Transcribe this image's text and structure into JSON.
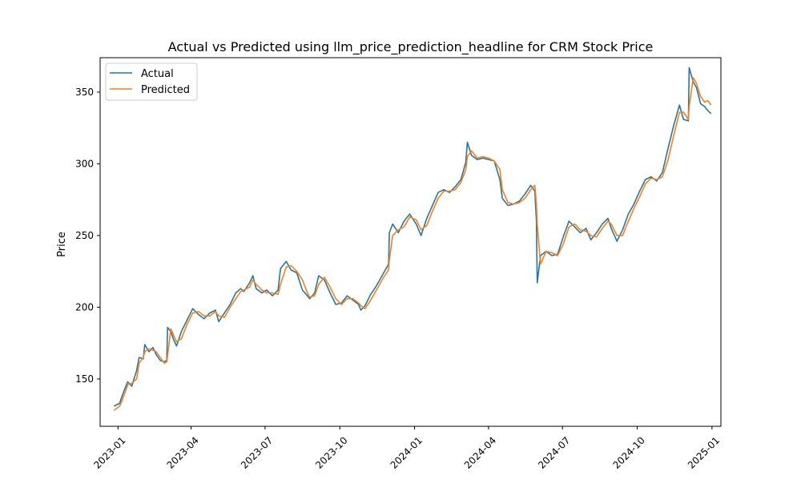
{
  "chart_data": {
    "type": "line",
    "title": "Actual vs Predicted using llm_price_prediction_headline for CRM Stock Price",
    "xlabel": "",
    "ylabel": "Price",
    "x_axis": "date",
    "xlim": [
      "2022-12-10",
      "2025-01-12"
    ],
    "ylim": [
      117,
      374
    ],
    "x_ticks": [
      "2023-01",
      "2023-04",
      "2023-07",
      "2023-10",
      "2024-01",
      "2024-04",
      "2024-07",
      "2024-10",
      "2025-01"
    ],
    "y_ticks": [
      150,
      200,
      250,
      300,
      350
    ],
    "grid": false,
    "legend": "top-left",
    "series": [
      {
        "name": "Actual",
        "color": "#1f77b4",
        "points": [
          [
            "2022-12-27",
            131
          ],
          [
            "2023-01-03",
            133
          ],
          [
            "2023-01-06",
            138
          ],
          [
            "2023-01-10",
            144
          ],
          [
            "2023-01-13",
            148
          ],
          [
            "2023-01-18",
            145
          ],
          [
            "2023-01-24",
            156
          ],
          [
            "2023-01-27",
            165
          ],
          [
            "2023-02-01",
            164
          ],
          [
            "2023-02-03",
            174
          ],
          [
            "2023-02-08",
            169
          ],
          [
            "2023-02-13",
            172
          ],
          [
            "2023-02-17",
            167
          ],
          [
            "2023-02-22",
            163
          ],
          [
            "2023-02-27",
            162
          ],
          [
            "2023-03-02",
            163
          ],
          [
            "2023-03-03",
            186
          ],
          [
            "2023-03-07",
            183
          ],
          [
            "2023-03-10",
            178
          ],
          [
            "2023-03-14",
            173
          ],
          [
            "2023-03-20",
            183
          ],
          [
            "2023-03-27",
            191
          ],
          [
            "2023-04-03",
            199
          ],
          [
            "2023-04-10",
            195
          ],
          [
            "2023-04-17",
            192
          ],
          [
            "2023-04-24",
            196
          ],
          [
            "2023-05-01",
            198
          ],
          [
            "2023-05-05",
            190
          ],
          [
            "2023-05-12",
            196
          ],
          [
            "2023-05-19",
            202
          ],
          [
            "2023-05-26",
            210
          ],
          [
            "2023-06-01",
            213
          ],
          [
            "2023-06-05",
            211
          ],
          [
            "2023-06-12",
            217
          ],
          [
            "2023-06-16",
            222
          ],
          [
            "2023-06-20",
            213
          ],
          [
            "2023-06-27",
            210
          ],
          [
            "2023-07-03",
            212
          ],
          [
            "2023-07-10",
            208
          ],
          [
            "2023-07-17",
            212
          ],
          [
            "2023-07-20",
            227
          ],
          [
            "2023-07-27",
            232
          ],
          [
            "2023-08-02",
            226
          ],
          [
            "2023-08-09",
            224
          ],
          [
            "2023-08-16",
            212
          ],
          [
            "2023-08-22",
            208
          ],
          [
            "2023-08-25",
            206
          ],
          [
            "2023-08-31",
            210
          ],
          [
            "2023-09-05",
            222
          ],
          [
            "2023-09-12",
            219
          ],
          [
            "2023-09-19",
            210
          ],
          [
            "2023-09-26",
            202
          ],
          [
            "2023-10-03",
            203
          ],
          [
            "2023-10-10",
            208
          ],
          [
            "2023-10-17",
            205
          ],
          [
            "2023-10-24",
            202
          ],
          [
            "2023-10-27",
            198
          ],
          [
            "2023-11-01",
            201
          ],
          [
            "2023-11-08",
            209
          ],
          [
            "2023-11-14",
            214
          ],
          [
            "2023-11-20",
            220
          ],
          [
            "2023-11-24",
            224
          ],
          [
            "2023-11-30",
            230
          ],
          [
            "2023-12-01",
            252
          ],
          [
            "2023-12-05",
            258
          ],
          [
            "2023-12-12",
            252
          ],
          [
            "2023-12-19",
            260
          ],
          [
            "2023-12-26",
            265
          ],
          [
            "2024-01-03",
            258
          ],
          [
            "2024-01-09",
            250
          ],
          [
            "2024-01-16",
            262
          ],
          [
            "2024-01-23",
            271
          ],
          [
            "2024-01-30",
            280
          ],
          [
            "2024-02-06",
            282
          ],
          [
            "2024-02-13",
            280
          ],
          [
            "2024-02-20",
            284
          ],
          [
            "2024-02-27",
            289
          ],
          [
            "2024-03-04",
            301
          ],
          [
            "2024-03-06",
            315
          ],
          [
            "2024-03-11",
            306
          ],
          [
            "2024-03-18",
            303
          ],
          [
            "2024-03-25",
            304
          ],
          [
            "2024-04-01",
            303
          ],
          [
            "2024-04-08",
            302
          ],
          [
            "2024-04-15",
            289
          ],
          [
            "2024-04-18",
            276
          ],
          [
            "2024-04-25",
            271
          ],
          [
            "2024-05-02",
            272
          ],
          [
            "2024-05-09",
            274
          ],
          [
            "2024-05-16",
            279
          ],
          [
            "2024-05-23",
            285
          ],
          [
            "2024-05-28",
            281
          ],
          [
            "2024-05-30",
            260
          ],
          [
            "2024-05-31",
            217
          ],
          [
            "2024-06-04",
            236
          ],
          [
            "2024-06-11",
            239
          ],
          [
            "2024-06-18",
            236
          ],
          [
            "2024-06-25",
            237
          ],
          [
            "2024-07-02",
            249
          ],
          [
            "2024-07-09",
            260
          ],
          [
            "2024-07-16",
            256
          ],
          [
            "2024-07-23",
            252
          ],
          [
            "2024-07-30",
            255
          ],
          [
            "2024-08-05",
            247
          ],
          [
            "2024-08-12",
            252
          ],
          [
            "2024-08-19",
            258
          ],
          [
            "2024-08-26",
            262
          ],
          [
            "2024-08-30",
            255
          ],
          [
            "2024-09-06",
            246
          ],
          [
            "2024-09-13",
            254
          ],
          [
            "2024-09-20",
            265
          ],
          [
            "2024-09-27",
            272
          ],
          [
            "2024-10-04",
            281
          ],
          [
            "2024-10-11",
            289
          ],
          [
            "2024-10-18",
            291
          ],
          [
            "2024-10-25",
            288
          ],
          [
            "2024-11-01",
            294
          ],
          [
            "2024-11-08",
            311
          ],
          [
            "2024-11-15",
            327
          ],
          [
            "2024-11-22",
            341
          ],
          [
            "2024-11-27",
            331
          ],
          [
            "2024-12-03",
            330
          ],
          [
            "2024-12-04",
            367
          ],
          [
            "2024-12-09",
            357
          ],
          [
            "2024-12-13",
            353
          ],
          [
            "2024-12-18",
            342
          ],
          [
            "2024-12-23",
            340
          ],
          [
            "2024-12-27",
            337
          ],
          [
            "2024-12-31",
            335
          ]
        ]
      },
      {
        "name": "Predicted",
        "color": "#ff7f0e",
        "points": [
          [
            "2022-12-27",
            128
          ],
          [
            "2023-01-03",
            131
          ],
          [
            "2023-01-06",
            135
          ],
          [
            "2023-01-10",
            141
          ],
          [
            "2023-01-13",
            146
          ],
          [
            "2023-01-18",
            147
          ],
          [
            "2023-01-24",
            150
          ],
          [
            "2023-01-27",
            161
          ],
          [
            "2023-02-01",
            165
          ],
          [
            "2023-02-03",
            169
          ],
          [
            "2023-02-08",
            171
          ],
          [
            "2023-02-13",
            170
          ],
          [
            "2023-02-17",
            169
          ],
          [
            "2023-02-22",
            165
          ],
          [
            "2023-02-27",
            161
          ],
          [
            "2023-03-02",
            162
          ],
          [
            "2023-03-03",
            166
          ],
          [
            "2023-03-07",
            185
          ],
          [
            "2023-03-10",
            181
          ],
          [
            "2023-03-14",
            176
          ],
          [
            "2023-03-20",
            178
          ],
          [
            "2023-03-27",
            188
          ],
          [
            "2023-04-03",
            196
          ],
          [
            "2023-04-10",
            197
          ],
          [
            "2023-04-17",
            194
          ],
          [
            "2023-04-24",
            194
          ],
          [
            "2023-05-01",
            197
          ],
          [
            "2023-05-05",
            194
          ],
          [
            "2023-05-12",
            193
          ],
          [
            "2023-05-19",
            200
          ],
          [
            "2023-05-26",
            206
          ],
          [
            "2023-06-01",
            211
          ],
          [
            "2023-06-05",
            212
          ],
          [
            "2023-06-12",
            214
          ],
          [
            "2023-06-16",
            219
          ],
          [
            "2023-06-20",
            216
          ],
          [
            "2023-06-27",
            212
          ],
          [
            "2023-07-03",
            210
          ],
          [
            "2023-07-10",
            210
          ],
          [
            "2023-07-17",
            209
          ],
          [
            "2023-07-20",
            216
          ],
          [
            "2023-07-27",
            228
          ],
          [
            "2023-08-02",
            229
          ],
          [
            "2023-08-09",
            225
          ],
          [
            "2023-08-16",
            219
          ],
          [
            "2023-08-22",
            210
          ],
          [
            "2023-08-25",
            207
          ],
          [
            "2023-08-31",
            208
          ],
          [
            "2023-09-05",
            216
          ],
          [
            "2023-09-12",
            221
          ],
          [
            "2023-09-19",
            214
          ],
          [
            "2023-09-26",
            206
          ],
          [
            "2023-10-03",
            202
          ],
          [
            "2023-10-10",
            206
          ],
          [
            "2023-10-17",
            206
          ],
          [
            "2023-10-24",
            203
          ],
          [
            "2023-10-27",
            201
          ],
          [
            "2023-11-01",
            199
          ],
          [
            "2023-11-08",
            205
          ],
          [
            "2023-11-14",
            211
          ],
          [
            "2023-11-20",
            217
          ],
          [
            "2023-11-24",
            221
          ],
          [
            "2023-11-30",
            226
          ],
          [
            "2023-12-01",
            233
          ],
          [
            "2023-12-05",
            250
          ],
          [
            "2023-12-12",
            254
          ],
          [
            "2023-12-19",
            256
          ],
          [
            "2023-12-26",
            263
          ],
          [
            "2024-01-03",
            261
          ],
          [
            "2024-01-09",
            254
          ],
          [
            "2024-01-16",
            257
          ],
          [
            "2024-01-23",
            267
          ],
          [
            "2024-01-30",
            276
          ],
          [
            "2024-02-06",
            281
          ],
          [
            "2024-02-13",
            281
          ],
          [
            "2024-02-20",
            282
          ],
          [
            "2024-02-27",
            287
          ],
          [
            "2024-03-04",
            296
          ],
          [
            "2024-03-06",
            305
          ],
          [
            "2024-03-11",
            309
          ],
          [
            "2024-03-18",
            304
          ],
          [
            "2024-03-25",
            305
          ],
          [
            "2024-04-01",
            304
          ],
          [
            "2024-04-08",
            302
          ],
          [
            "2024-04-15",
            296
          ],
          [
            "2024-04-18",
            282
          ],
          [
            "2024-04-25",
            273
          ],
          [
            "2024-05-02",
            272
          ],
          [
            "2024-05-09",
            273
          ],
          [
            "2024-05-16",
            276
          ],
          [
            "2024-05-23",
            282
          ],
          [
            "2024-05-28",
            285
          ],
          [
            "2024-05-30",
            272
          ],
          [
            "2024-05-31",
            258
          ],
          [
            "2024-06-04",
            230
          ],
          [
            "2024-06-11",
            239
          ],
          [
            "2024-06-18",
            238
          ],
          [
            "2024-06-25",
            236
          ],
          [
            "2024-07-02",
            244
          ],
          [
            "2024-07-09",
            256
          ],
          [
            "2024-07-16",
            258
          ],
          [
            "2024-07-23",
            254
          ],
          [
            "2024-07-30",
            253
          ],
          [
            "2024-08-05",
            250
          ],
          [
            "2024-08-12",
            249
          ],
          [
            "2024-08-19",
            255
          ],
          [
            "2024-08-26",
            260
          ],
          [
            "2024-08-30",
            258
          ],
          [
            "2024-09-06",
            250
          ],
          [
            "2024-09-13",
            250
          ],
          [
            "2024-09-20",
            260
          ],
          [
            "2024-09-27",
            269
          ],
          [
            "2024-10-04",
            277
          ],
          [
            "2024-10-11",
            286
          ],
          [
            "2024-10-18",
            290
          ],
          [
            "2024-10-25",
            289
          ],
          [
            "2024-11-01",
            291
          ],
          [
            "2024-11-08",
            303
          ],
          [
            "2024-11-15",
            320
          ],
          [
            "2024-11-22",
            336
          ],
          [
            "2024-11-27",
            336
          ],
          [
            "2024-12-03",
            331
          ],
          [
            "2024-12-04",
            340
          ],
          [
            "2024-12-09",
            360
          ],
          [
            "2024-12-13",
            356
          ],
          [
            "2024-12-18",
            347
          ],
          [
            "2024-12-23",
            343
          ],
          [
            "2024-12-27",
            344
          ],
          [
            "2024-12-31",
            341
          ]
        ]
      }
    ]
  }
}
